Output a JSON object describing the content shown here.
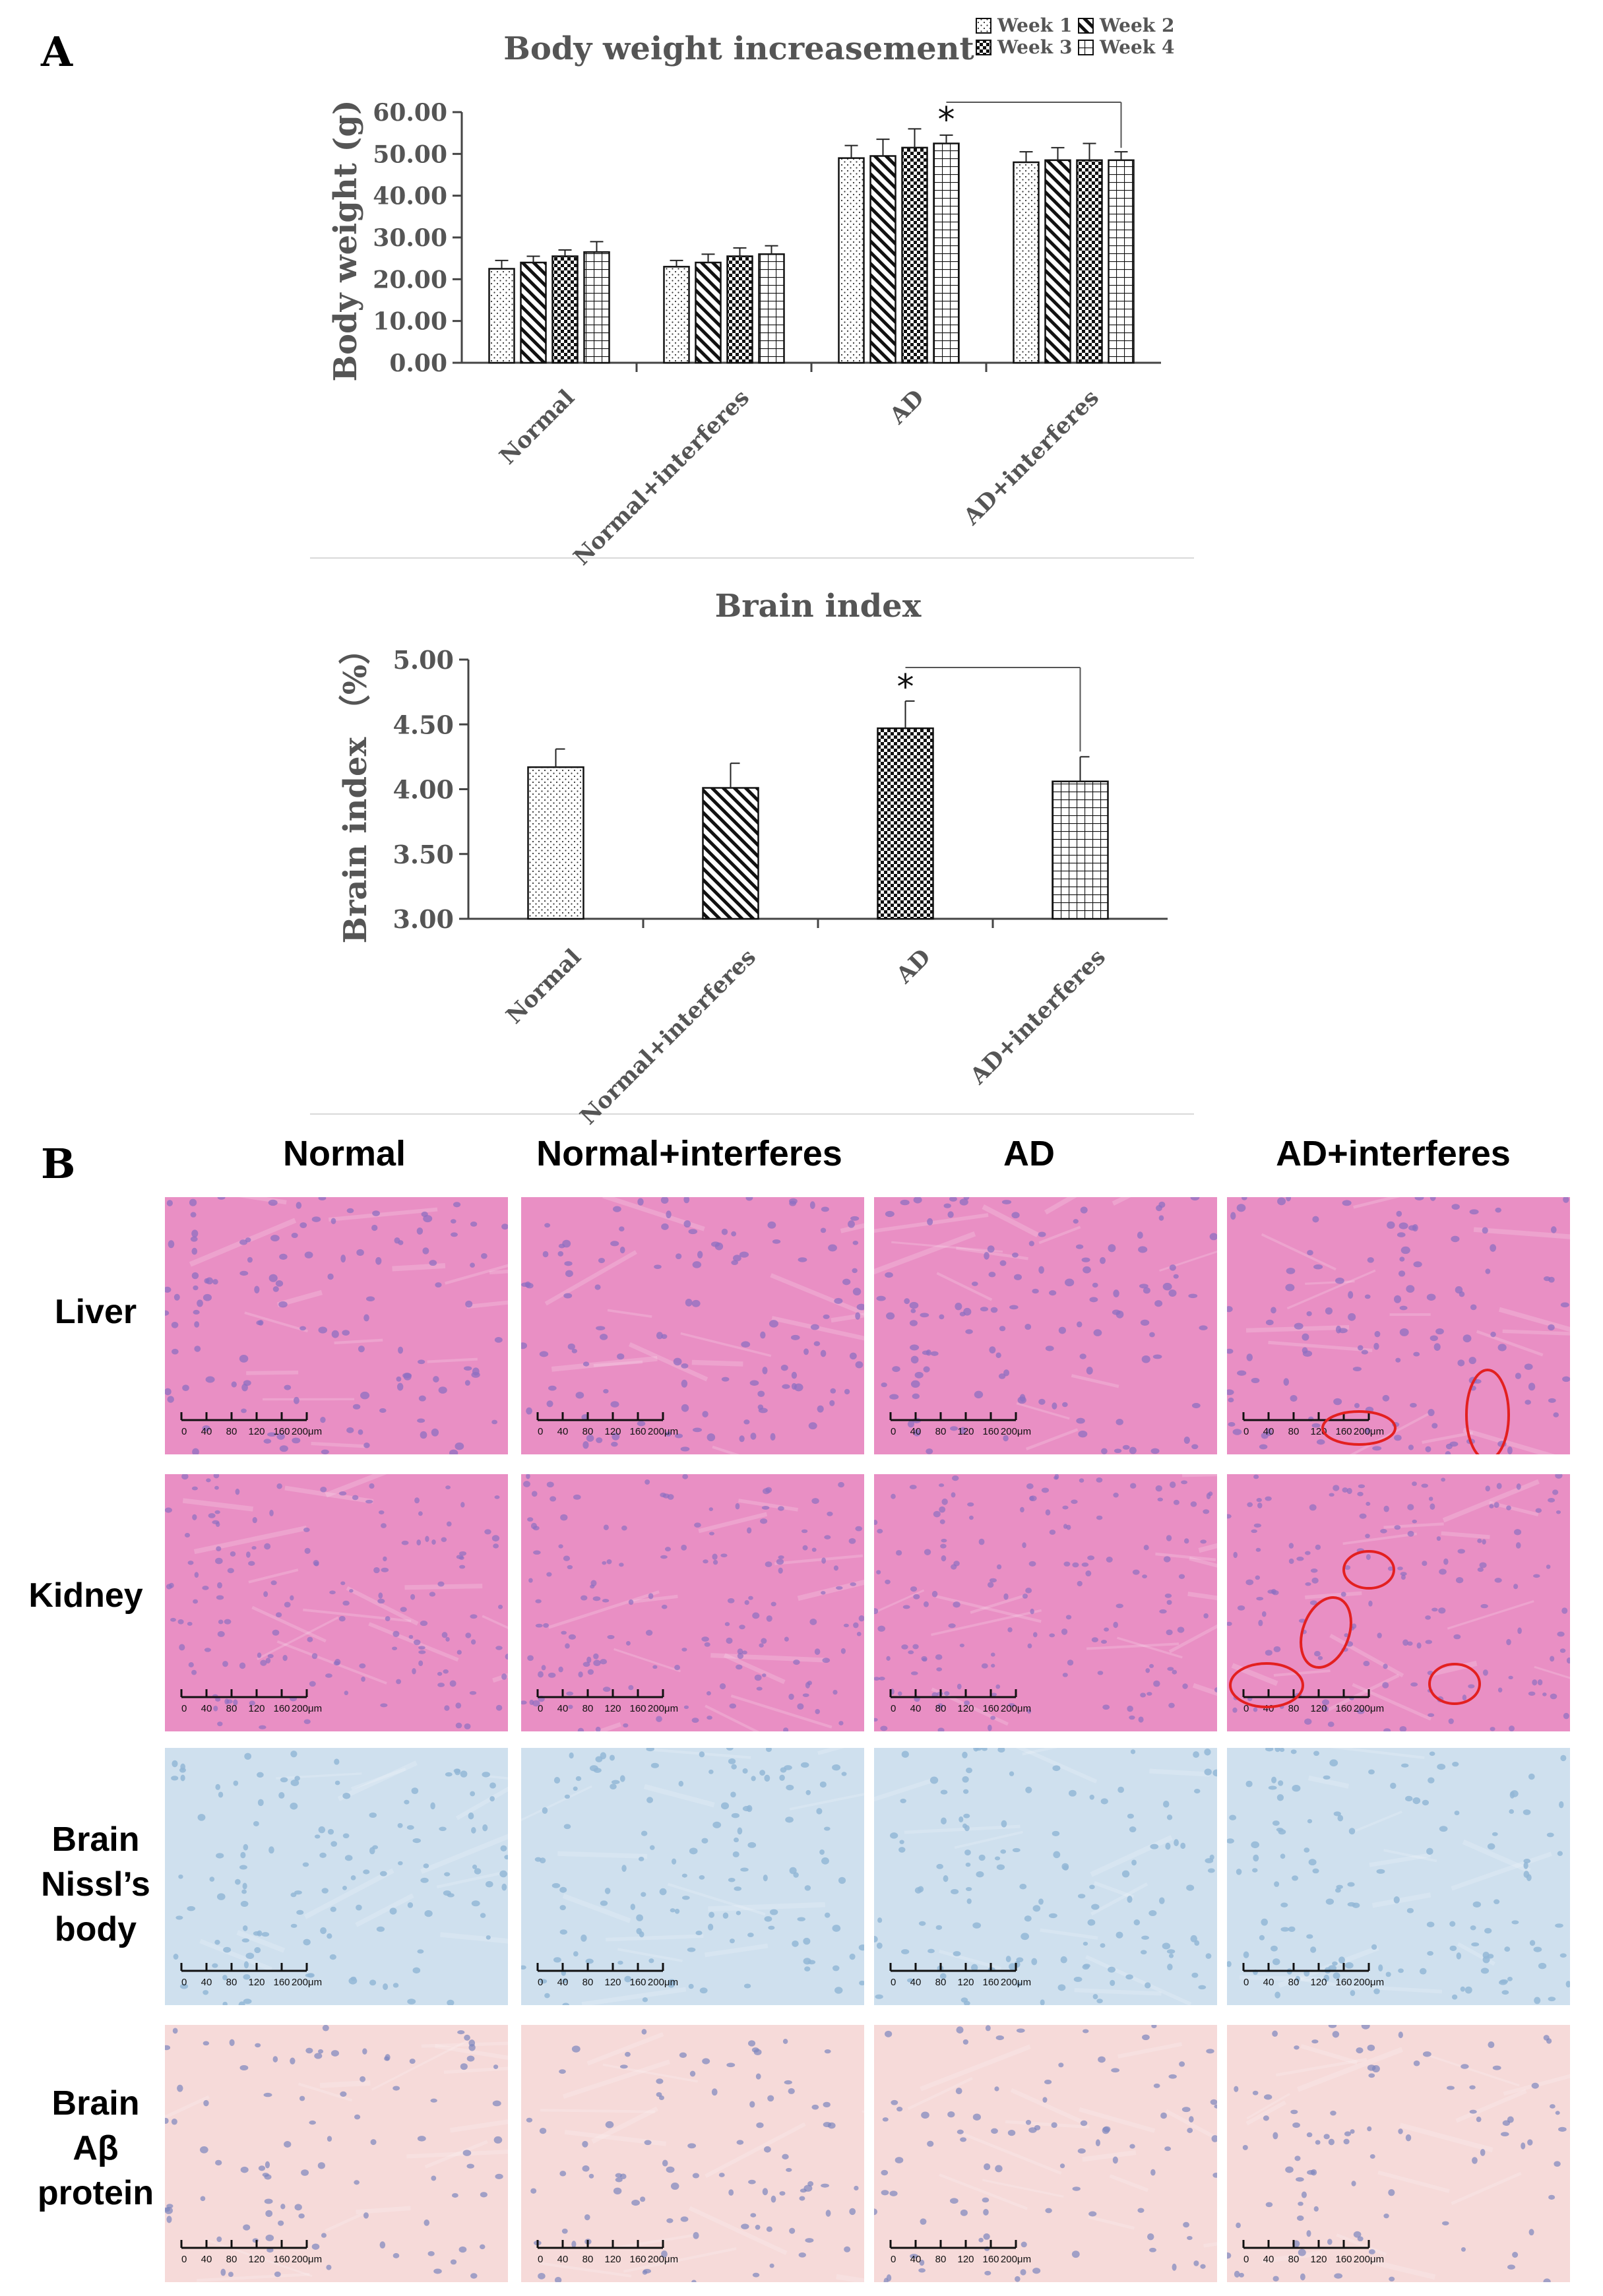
{
  "panel_labels": {
    "a": "A",
    "b": "B"
  },
  "chart_data": [
    {
      "type": "bar",
      "title": "Body weight increasement",
      "xlabel": "",
      "ylabel": "Body weight (g)",
      "ylim": [
        0,
        60
      ],
      "yticks": [
        "0.00",
        "10.00",
        "20.00",
        "30.00",
        "40.00",
        "50.00",
        "60.00"
      ],
      "categories": [
        "Normal",
        "Normal+interferes",
        "AD",
        "AD+interferes"
      ],
      "series": [
        {
          "name": "Week 1",
          "pattern": "dots",
          "values": [
            22.5,
            23.0,
            49.0,
            48.0
          ],
          "errors": [
            2.0,
            1.5,
            3.0,
            2.5
          ]
        },
        {
          "name": "Week 2",
          "pattern": "diagonal",
          "values": [
            24.0,
            24.0,
            49.5,
            48.5
          ],
          "errors": [
            1.5,
            2.0,
            4.0,
            3.0
          ]
        },
        {
          "name": "Week 3",
          "pattern": "checker",
          "values": [
            25.5,
            25.5,
            51.5,
            48.5
          ],
          "errors": [
            1.5,
            2.0,
            4.5,
            4.0
          ]
        },
        {
          "name": "Week 4",
          "pattern": "grid",
          "values": [
            26.5,
            26.0,
            52.5,
            48.5
          ],
          "errors": [
            2.5,
            2.0,
            2.0,
            2.0
          ]
        }
      ],
      "significance": {
        "marker": "*",
        "from": "AD",
        "to": "AD+interferes",
        "series": "Week 4"
      },
      "legend": "top-right",
      "grid": false
    },
    {
      "type": "bar",
      "title": "Brain index",
      "xlabel": "",
      "ylabel": "Brain index （%）",
      "ylim": [
        3.0,
        5.0
      ],
      "yticks": [
        "3.00",
        "3.50",
        "4.00",
        "4.50",
        "5.00"
      ],
      "categories": [
        "Normal",
        "Normal+interferes",
        "AD",
        "AD+interferes"
      ],
      "patterns": [
        "dots",
        "diagonal",
        "checker",
        "grid"
      ],
      "values": [
        4.17,
        4.01,
        4.47,
        4.06
      ],
      "errors": [
        0.14,
        0.19,
        0.21,
        0.19
      ],
      "significance": {
        "marker": "*",
        "from": "AD",
        "to": "AD+interferes"
      },
      "legend": "none",
      "grid": false
    }
  ],
  "histology": {
    "columns": [
      "Normal",
      "Normal+interferes",
      "AD",
      "AD+interferes"
    ],
    "rows": [
      "Liver",
      "Kidney",
      "Brain\nNissl’s\nbody",
      "Brain\nAβ\nprotein"
    ],
    "scale_ticks": [
      "0",
      "40",
      "80",
      "120",
      "160",
      "200μm"
    ],
    "stain_colors": {
      "he_bg": "#e98fc4",
      "he_nuclei": "#8d6fc2",
      "nissl_bg": "#cfe0ee",
      "nissl_cells": "#93b7d6",
      "abeta_bg": "#f6dad9",
      "abeta_cells": "#7d86bd"
    },
    "annotation_color": "#e32020"
  }
}
